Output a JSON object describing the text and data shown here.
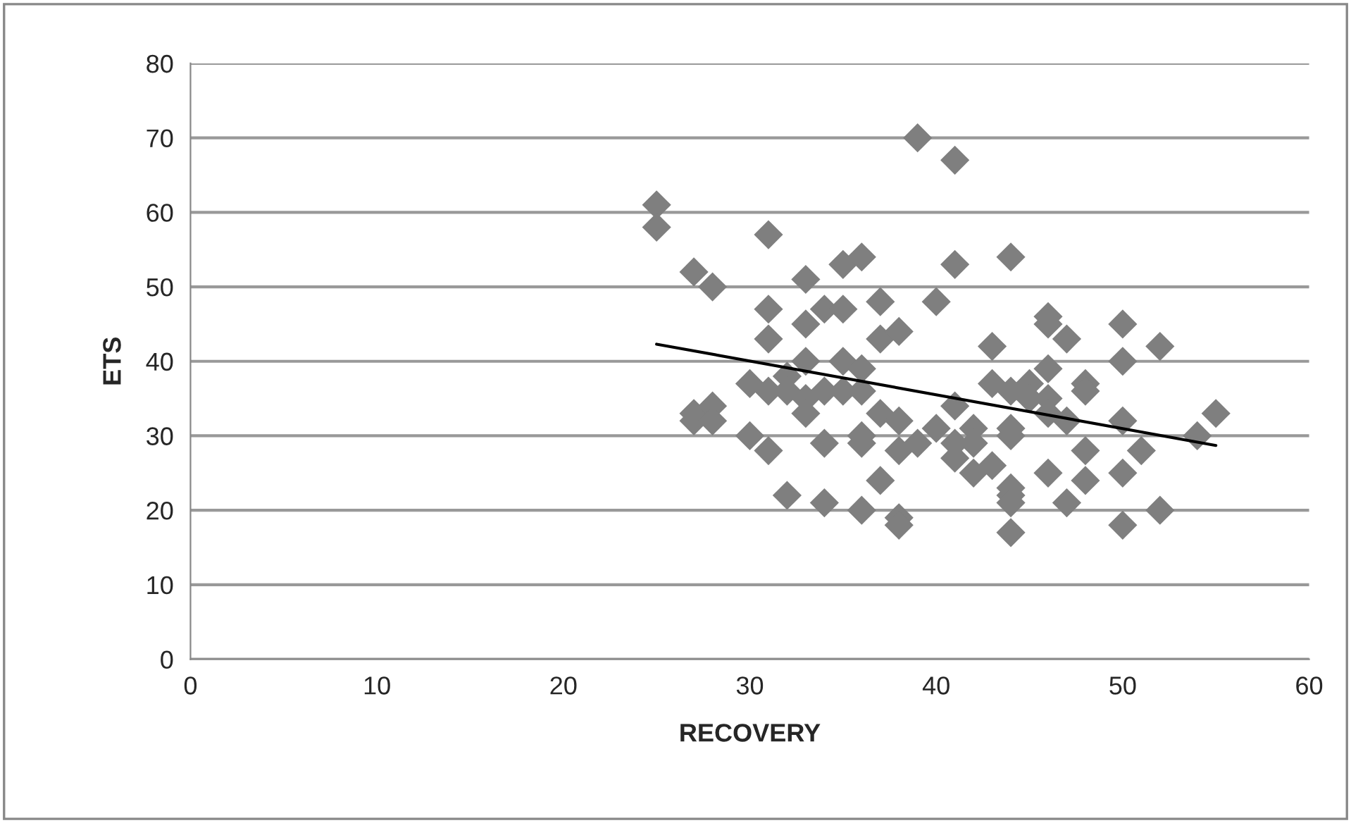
{
  "chart_data": {
    "type": "scatter",
    "xlabel": "RECOVERY",
    "ylabel": "ETS",
    "xlim": [
      0,
      60
    ],
    "xticks": [
      0,
      10,
      20,
      30,
      40,
      50,
      60
    ],
    "ylim": [
      0,
      80
    ],
    "yticks": [
      0,
      10,
      20,
      30,
      40,
      50,
      60,
      70,
      80
    ],
    "grid": "y",
    "marker": "diamond",
    "legend": false,
    "series": [
      {
        "color": "#7f7f7f",
        "x": [
          25,
          25,
          27,
          28,
          31,
          31,
          31,
          33,
          33,
          34,
          35,
          35,
          36,
          37,
          37,
          38,
          40,
          41,
          39,
          41,
          44,
          43,
          46,
          46,
          47,
          50,
          52,
          50,
          27,
          27,
          28,
          28,
          30,
          30,
          31,
          31,
          32,
          32,
          32,
          33,
          33,
          33,
          34,
          34,
          34,
          35,
          35,
          36,
          36,
          36,
          36,
          36,
          37,
          37,
          38,
          38,
          38,
          38,
          39,
          40,
          41,
          41,
          41,
          42,
          42,
          42,
          43,
          43,
          44,
          44,
          44,
          44,
          44,
          44,
          44,
          45,
          45,
          46,
          46,
          46,
          46,
          47,
          47,
          48,
          48,
          48,
          48,
          50,
          50,
          50,
          51,
          52,
          54,
          55
        ],
        "values": [
          61,
          58,
          52,
          50,
          57,
          47,
          43,
          51,
          45,
          47,
          53,
          47,
          54,
          48,
          43,
          44,
          48,
          53,
          70,
          67,
          54,
          42,
          46,
          45,
          43,
          45,
          42,
          40,
          33,
          32,
          34,
          32,
          37,
          30,
          36,
          28,
          38,
          36,
          22,
          40,
          35,
          33,
          36,
          29,
          21,
          40,
          36,
          39,
          36,
          30,
          29,
          20,
          33,
          24,
          32,
          28,
          19,
          18,
          29,
          31,
          34,
          29,
          27,
          31,
          29,
          25,
          37,
          26,
          36,
          31,
          30,
          23,
          22,
          21,
          17,
          37,
          35,
          39,
          35,
          33,
          25,
          32,
          21,
          37,
          36,
          28,
          24,
          32,
          25,
          18,
          28,
          20,
          30,
          33
        ]
      },
      {
        "type": "line",
        "color": "#000000",
        "marker": "none",
        "line_style": "solid",
        "x": [
          25,
          55
        ],
        "values": [
          42.3,
          28.7
        ]
      }
    ]
  }
}
